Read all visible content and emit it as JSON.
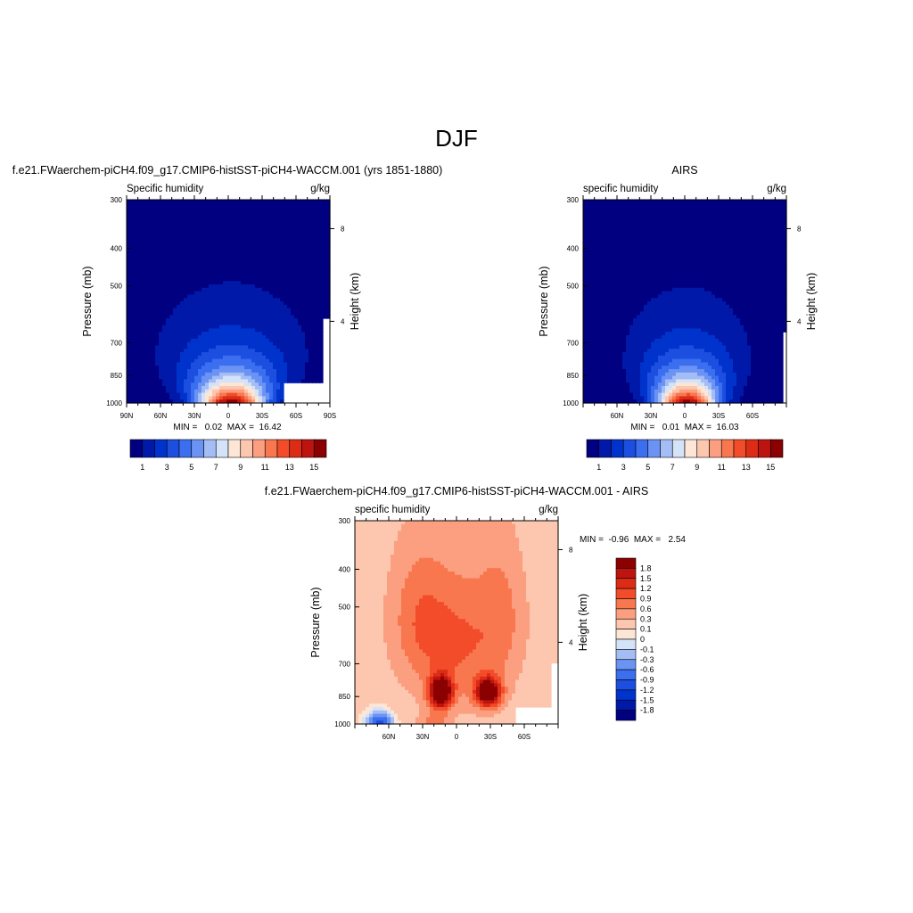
{
  "figure": {
    "main_title": "DJF"
  },
  "chart_data": [
    {
      "type": "heatmap",
      "name_label": "f.e21.FWaerchem-piCH4.f09_g17.CMIP6-histSST-piCH4-WACCM.001 (yrs 1851-1880)",
      "left_string": "Specific humidity",
      "right_string": "g/kg",
      "ylabel": "Pressure (mb)",
      "y2label": "Height (km)",
      "x_ticks": [
        "90N",
        "60N",
        "30N",
        "0",
        "30S",
        "60S",
        "90S"
      ],
      "x_tick_lats": [
        90,
        60,
        30,
        0,
        -30,
        -60,
        -90
      ],
      "xlim": [
        90,
        -90
      ],
      "y_ticks": [
        300,
        400,
        500,
        700,
        850,
        1000
      ],
      "ylim": [
        1000,
        300
      ],
      "y_scale": "log",
      "y2_ticks": [
        8,
        4
      ],
      "min_max": "MIN =   0.02  MAX =  16.42",
      "min": 0.02,
      "max": 16.42,
      "field": {
        "amp": 16.2,
        "lat0": -3,
        "width0": 20,
        "width_k": 1.1,
        "floor": 0.3
      },
      "missing": [
        {
          "lat": [
            -50,
            -90
          ],
          "p": [
            890,
            1000
          ]
        },
        {
          "lat": [
            -84,
            -90
          ],
          "p": [
            600,
            1000
          ]
        }
      ],
      "colorbar": {
        "orientation": "horizontal",
        "levels": [
          0,
          1,
          2,
          3,
          4,
          5,
          6,
          7,
          8,
          9,
          10,
          11,
          12,
          13,
          14,
          15
        ],
        "labels": [
          "1",
          "3",
          "5",
          "7",
          "9",
          "11",
          "13",
          "15"
        ],
        "colors": [
          "#000080",
          "#0019a8",
          "#0033cc",
          "#1c4fe0",
          "#3b6ff0",
          "#6b93f4",
          "#a4bdf5",
          "#d5e3f9",
          "#fde6d6",
          "#fdc6ae",
          "#fb9f80",
          "#f8774f",
          "#f24c2a",
          "#dd2c16",
          "#be1410",
          "#8b0000"
        ]
      }
    },
    {
      "type": "heatmap",
      "name_label": "AIRS",
      "left_string": "specific humidity",
      "right_string": "g/kg",
      "ylabel": "Pressure (mb)",
      "y2label": "Height (km)",
      "x_ticks": [
        "60N",
        "30N",
        "0",
        "30S",
        "60S"
      ],
      "x_tick_lats": [
        60,
        30,
        0,
        -30,
        -60
      ],
      "xlim": [
        90,
        -90
      ],
      "y_ticks": [
        300,
        400,
        500,
        700,
        850,
        1000
      ],
      "ylim": [
        1000,
        300
      ],
      "y_scale": "log",
      "y2_ticks": [
        8,
        4
      ],
      "min_max": "MIN =   0.01  MAX =  16.03",
      "min": 0.01,
      "max": 16.03,
      "field": {
        "amp": 15.9,
        "lat0": -2,
        "width0": 18,
        "width_k": 1.0,
        "floor": 0.25
      },
      "missing": [
        {
          "lat": [
            -86,
            -90
          ],
          "p": [
            650,
            1000
          ]
        }
      ],
      "colorbar": {
        "orientation": "horizontal",
        "levels": [
          0,
          1,
          2,
          3,
          4,
          5,
          6,
          7,
          8,
          9,
          10,
          11,
          12,
          13,
          14,
          15
        ],
        "labels": [
          "1",
          "3",
          "5",
          "7",
          "9",
          "11",
          "13",
          "15"
        ],
        "colors": [
          "#000080",
          "#0019a8",
          "#0033cc",
          "#1c4fe0",
          "#3b6ff0",
          "#6b93f4",
          "#a4bdf5",
          "#d5e3f9",
          "#fde6d6",
          "#fdc6ae",
          "#fb9f80",
          "#f8774f",
          "#f24c2a",
          "#dd2c16",
          "#be1410",
          "#8b0000"
        ]
      }
    },
    {
      "type": "heatmap",
      "name_label": "f.e21.FWaerchem-piCH4.f09_g17.CMIP6-histSST-piCH4-WACCM.001 - AIRS",
      "left_string": "specific humidity",
      "right_string": "g/kg",
      "ylabel": "Pressure (mb)",
      "y2label": "Height (km)",
      "x_ticks": [
        "60N",
        "30N",
        "0",
        "30S",
        "60S"
      ],
      "x_tick_lats": [
        60,
        30,
        0,
        -30,
        -60
      ],
      "xlim": [
        90,
        -90
      ],
      "y_ticks": [
        300,
        400,
        500,
        700,
        850,
        1000
      ],
      "ylim": [
        1000,
        300
      ],
      "y_scale": "log",
      "y2_ticks": [
        8,
        4
      ],
      "min_max": "MIN =  -0.96  MAX =   2.54",
      "min": -0.96,
      "max": 2.54,
      "field": {
        "diff": true
      },
      "missing": [
        {
          "lat": [
            -53,
            -90
          ],
          "p": [
            900,
            1000
          ]
        },
        {
          "lat": [
            -83,
            -90
          ],
          "p": [
            700,
            1000
          ]
        }
      ],
      "colorbar": {
        "orientation": "vertical",
        "levels": [
          -2.1,
          -1.8,
          -1.5,
          -1.2,
          -0.9,
          -0.6,
          -0.3,
          -0.1,
          0,
          0.1,
          0.3,
          0.6,
          0.9,
          1.2,
          1.5,
          1.8
        ],
        "labels": [
          "1.8",
          "1.5",
          "1.2",
          "0.9",
          "0.6",
          "0.3",
          "0.1",
          "0",
          "-0.1",
          "-0.3",
          "-0.6",
          "-0.9",
          "-1.2",
          "-1.5",
          "-1.8"
        ],
        "colors": [
          "#000080",
          "#0019a8",
          "#0033cc",
          "#1c4fe0",
          "#3b6ff0",
          "#6b93f4",
          "#a4bdf5",
          "#d5e3f9",
          "#fde6d6",
          "#fdc6ae",
          "#fb9f80",
          "#f8774f",
          "#f24c2a",
          "#dd2c16",
          "#be1410",
          "#8b0000"
        ]
      }
    }
  ]
}
